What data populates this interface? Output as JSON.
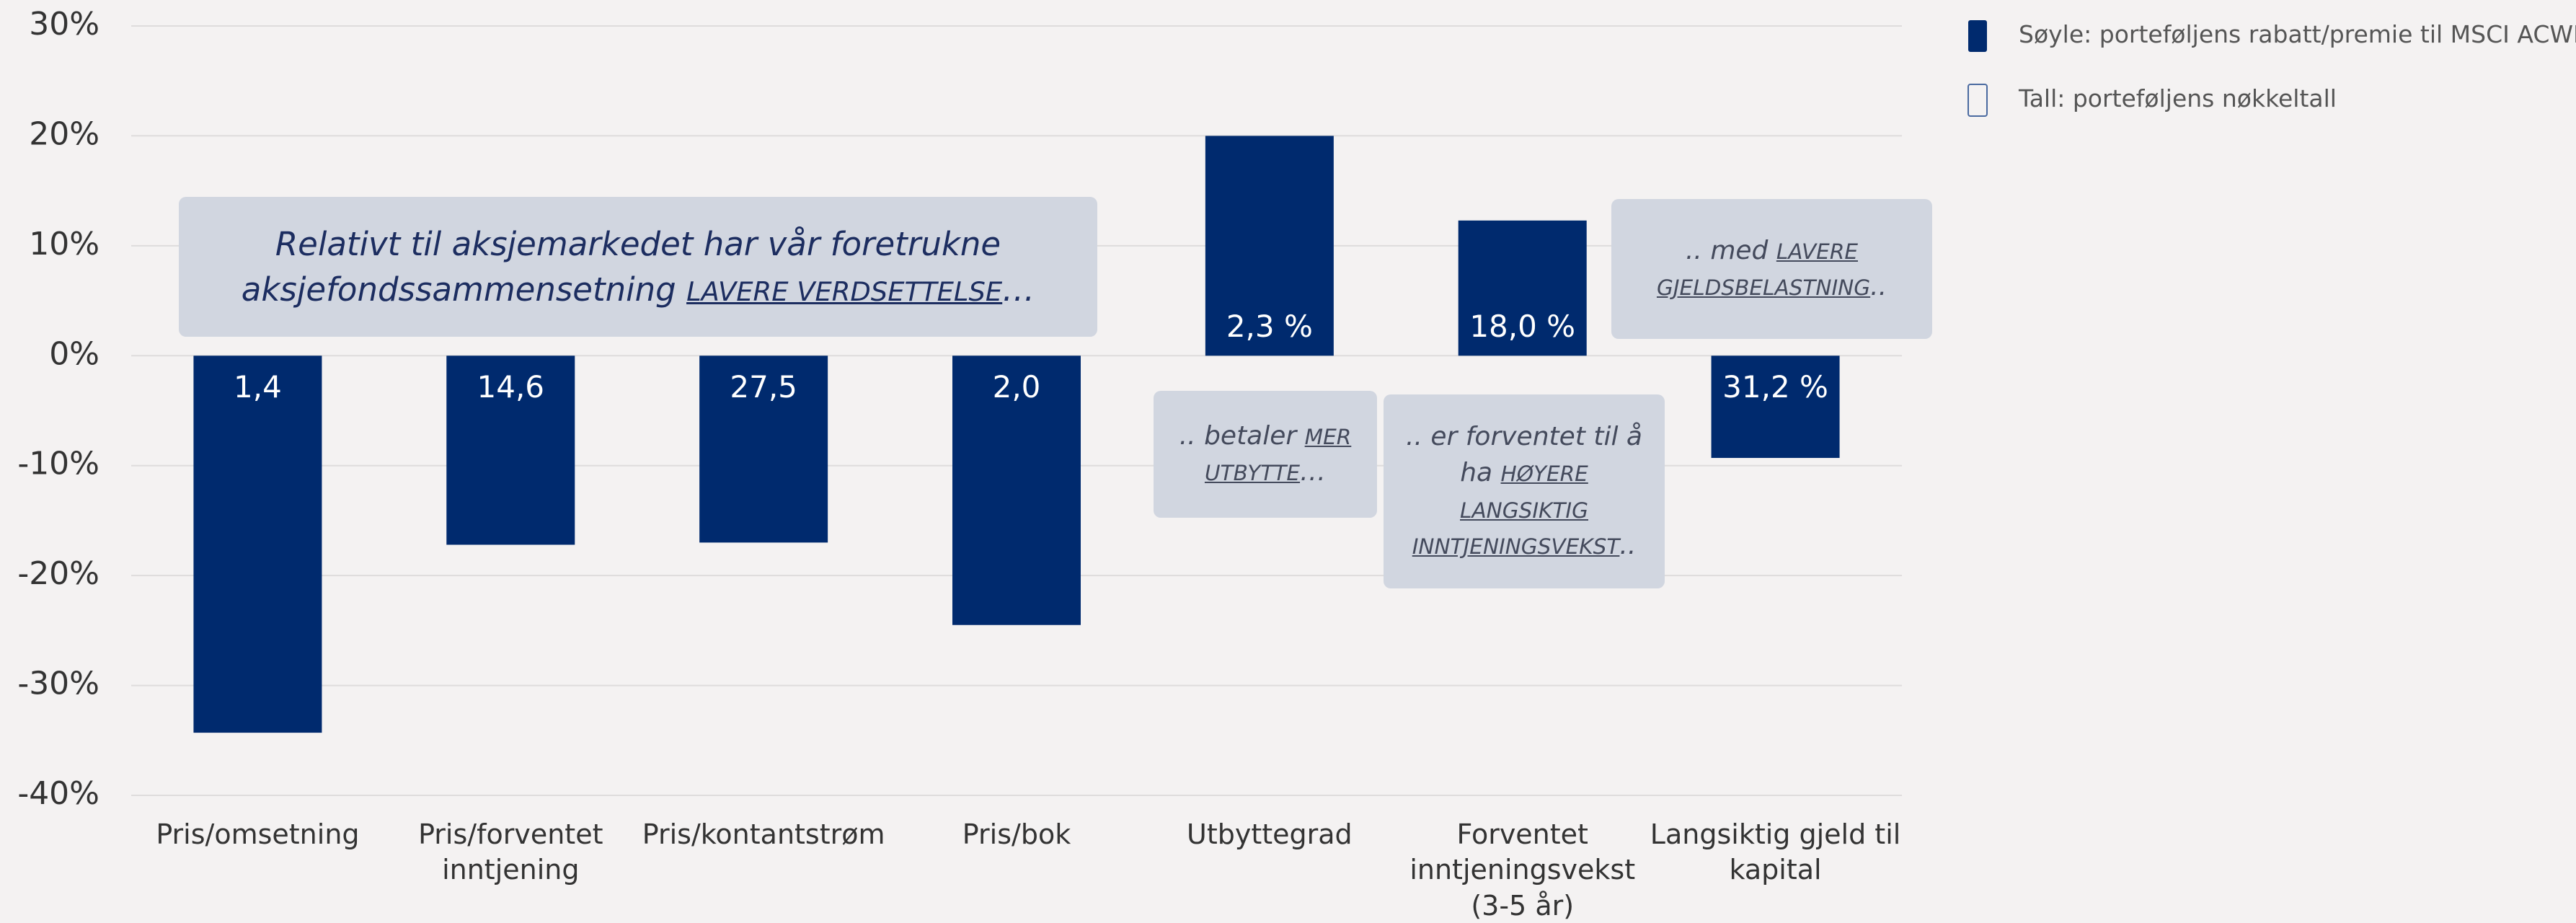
{
  "chart_data": {
    "type": "bar",
    "categories": [
      "Pris/omsetning",
      "Pris/forventet inntjening",
      "Pris/kontantstrøm",
      "Pris/bok",
      "Utbyttegrad",
      "Forventet inntjeningsvekst (3-5 år)",
      "Langsiktig gjeld til kapital"
    ],
    "series": [
      {
        "name": "Søyle: porteføljens rabatt/premie til MSCI ACWI",
        "color": "#002a6e",
        "values": [
          -34.3,
          -17.2,
          -17,
          -24.5,
          20,
          12.3,
          -9.3
        ]
      }
    ],
    "key_figures_name": "Tall: porteføljens nøkkeltall",
    "key_figures": [
      "1,4",
      "14,6",
      "27,5",
      "2,0",
      "2,3 %",
      "18,0 %",
      "31,2 %"
    ],
    "ylim": [
      -40,
      30
    ],
    "yticks": [
      {
        "value": -40,
        "label": "-40%"
      },
      {
        "value": -30,
        "label": "-30%"
      },
      {
        "value": -20,
        "label": "-20%"
      },
      {
        "value": -10,
        "label": "-10%"
      },
      {
        "value": 0,
        "label": "0%"
      },
      {
        "value": 10,
        "label": "10%"
      },
      {
        "value": 20,
        "label": "20%"
      },
      {
        "value": 30,
        "label": "30%"
      }
    ],
    "grid": true,
    "annotations": [
      {
        "parts": [
          {
            "text": "Relativt til aksjemarkedet har vår foretrukne aksjefondssammensetning "
          },
          {
            "text": "LAVERE VERDSETTELSE",
            "underline": true
          },
          {
            "text": "…"
          }
        ]
      },
      {
        "parts": [
          {
            "text": ".. betaler "
          },
          {
            "text": "MER UTBYTTE",
            "underline": true
          },
          {
            "text": "…"
          }
        ]
      },
      {
        "parts": [
          {
            "text": ".. er forventet til å ha "
          },
          {
            "text": "HØYERE LANGSIKTIG INNTJENINGSVEKST",
            "underline": true
          },
          {
            "text": ".."
          }
        ]
      },
      {
        "parts": [
          {
            "text": ".. med "
          },
          {
            "text": "LAVERE GJELDSBELASTNING",
            "underline": true
          },
          {
            "text": ".."
          }
        ]
      }
    ]
  }
}
